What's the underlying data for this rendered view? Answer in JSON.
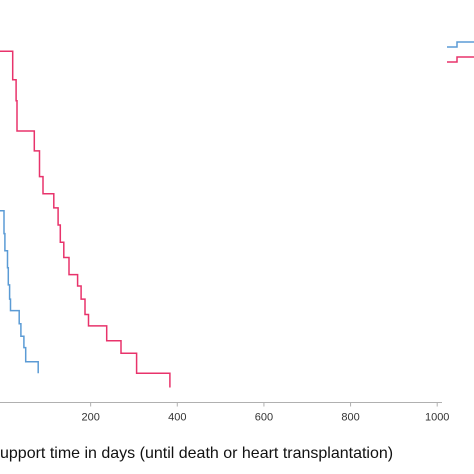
{
  "chart_data": {
    "type": "line",
    "subtype": "step",
    "xlabel": "upport time in days (until death or heart transplantation)",
    "xlim": [
      -10,
      1000
    ],
    "x_ticks": [
      200,
      400,
      600,
      800,
      1000
    ],
    "grid": false,
    "legend": {
      "position": "top-right",
      "entries_visible_text": false
    },
    "series": [
      {
        "color": "#e8336b",
        "points": [
          [
            -10,
            0.94
          ],
          [
            20,
            0.94
          ],
          [
            20,
            0.89
          ],
          [
            28,
            0.89
          ],
          [
            28,
            0.853
          ],
          [
            30,
            0.853
          ],
          [
            30,
            0.8
          ],
          [
            70,
            0.8
          ],
          [
            70,
            0.765
          ],
          [
            82,
            0.765
          ],
          [
            82,
            0.72
          ],
          [
            90,
            0.72
          ],
          [
            90,
            0.69
          ],
          [
            115,
            0.69
          ],
          [
            115,
            0.665
          ],
          [
            125,
            0.665
          ],
          [
            125,
            0.635
          ],
          [
            130,
            0.635
          ],
          [
            130,
            0.605
          ],
          [
            138,
            0.605
          ],
          [
            138,
            0.578
          ],
          [
            150,
            0.578
          ],
          [
            150,
            0.548
          ],
          [
            170,
            0.548
          ],
          [
            170,
            0.528
          ],
          [
            178,
            0.528
          ],
          [
            178,
            0.505
          ],
          [
            187,
            0.505
          ],
          [
            187,
            0.478
          ],
          [
            195,
            0.478
          ],
          [
            195,
            0.458
          ],
          [
            237,
            0.458
          ],
          [
            237,
            0.432
          ],
          [
            270,
            0.432
          ],
          [
            270,
            0.41
          ],
          [
            306,
            0.41
          ],
          [
            306,
            0.375
          ],
          [
            383,
            0.375
          ],
          [
            383,
            0.35
          ]
        ]
      },
      {
        "color": "#5b9bd5",
        "points": [
          [
            -10,
            0.66
          ],
          [
            0,
            0.66
          ],
          [
            0,
            0.62
          ],
          [
            2,
            0.62
          ],
          [
            2,
            0.59
          ],
          [
            8,
            0.59
          ],
          [
            8,
            0.56
          ],
          [
            10,
            0.56
          ],
          [
            10,
            0.53
          ],
          [
            13,
            0.53
          ],
          [
            13,
            0.505
          ],
          [
            15,
            0.505
          ],
          [
            15,
            0.485
          ],
          [
            35,
            0.485
          ],
          [
            35,
            0.462
          ],
          [
            39,
            0.462
          ],
          [
            39,
            0.44
          ],
          [
            46,
            0.44
          ],
          [
            46,
            0.42
          ],
          [
            50,
            0.42
          ],
          [
            50,
            0.395
          ],
          [
            79,
            0.395
          ],
          [
            79,
            0.375
          ]
        ]
      }
    ]
  }
}
